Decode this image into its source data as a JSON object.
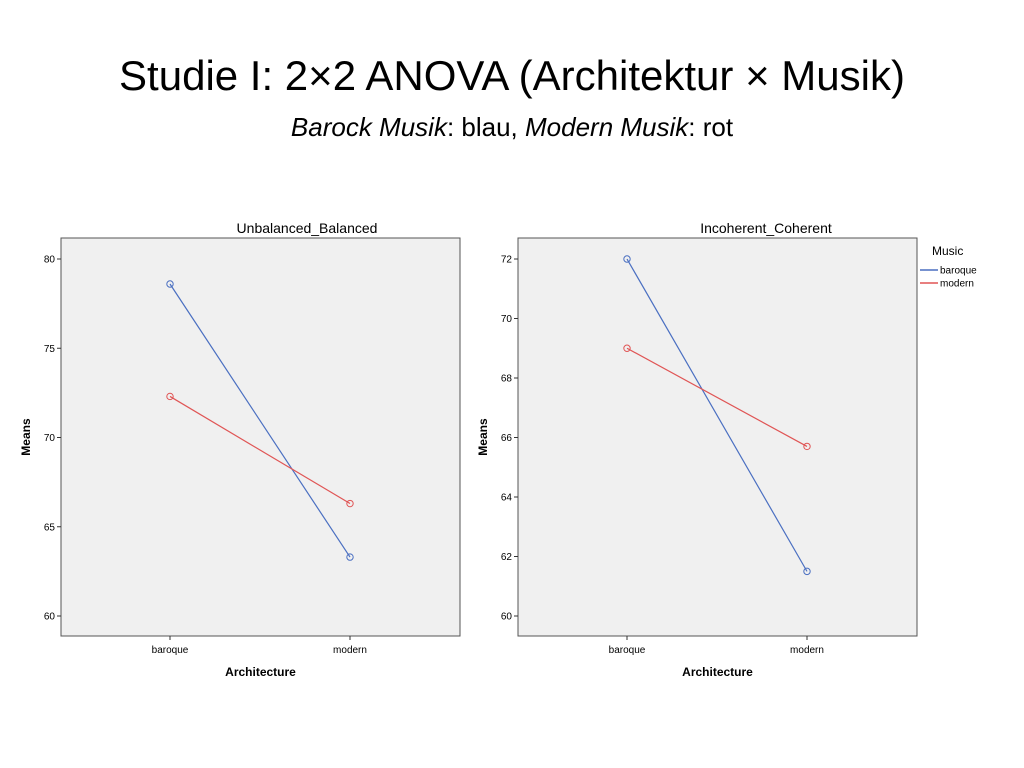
{
  "slide": {
    "title": "Studie I: 2×2 ANOVA (Architektur × Musik)",
    "subtitle_a": "Barock Musik",
    "subtitle_b": ": blau, ",
    "subtitle_c": "Modern Musik",
    "subtitle_d": ": rot"
  },
  "legend": {
    "title": "Music",
    "items": [
      {
        "label": "baroque",
        "color": "#4a6fc1"
      },
      {
        "label": "modern",
        "color": "#e05555"
      }
    ]
  },
  "chart_data": [
    {
      "type": "line",
      "title": "Unbalanced_Balanced",
      "xlabel": "Architecture",
      "ylabel": "Means",
      "categories": [
        "baroque",
        "modern"
      ],
      "ylim": [
        60,
        80
      ],
      "yticks": [
        60,
        65,
        70,
        75,
        80
      ],
      "grid": false,
      "series": [
        {
          "name": "baroque",
          "color": "#4a6fc1",
          "values": [
            78.6,
            63.3
          ]
        },
        {
          "name": "modern",
          "color": "#e05555",
          "values": [
            72.3,
            66.3
          ]
        }
      ]
    },
    {
      "type": "line",
      "title": "Incoherent_Coherent",
      "xlabel": "Architecture",
      "ylabel": "Means",
      "categories": [
        "baroque",
        "modern"
      ],
      "ylim": [
        60,
        72
      ],
      "yticks": [
        60,
        62,
        64,
        66,
        68,
        70,
        72
      ],
      "grid": false,
      "legend_position": "right",
      "series": [
        {
          "name": "baroque",
          "color": "#4a6fc1",
          "values": [
            72.0,
            61.5
          ]
        },
        {
          "name": "modern",
          "color": "#e05555",
          "values": [
            69.0,
            65.7
          ]
        }
      ]
    }
  ]
}
